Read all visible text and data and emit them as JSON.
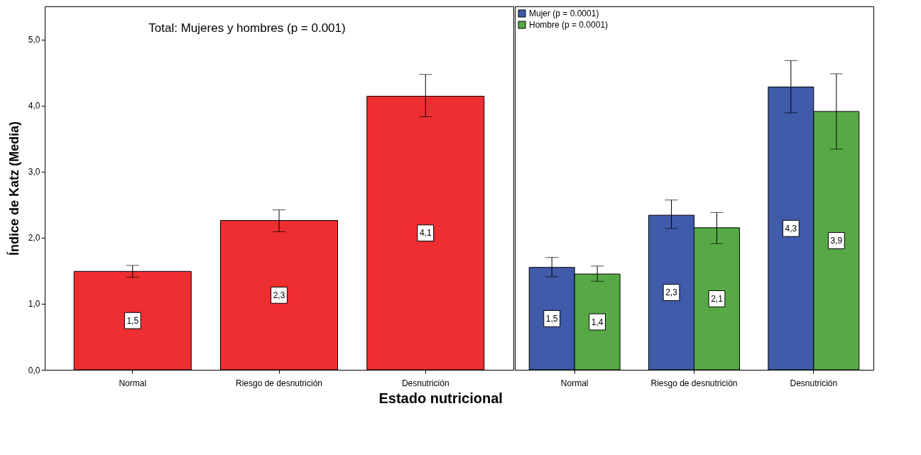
{
  "chart_data": [
    {
      "type": "bar",
      "title": "Total: Mujeres y hombres (p = 0.001)",
      "xlabel": "Estado nutricional",
      "ylabel": "Índice de Katz (Media)",
      "categories": [
        "Normal",
        "Riesgo de desnutrición",
        "Desnutrición"
      ],
      "series": [
        {
          "color": "#ee2e31",
          "values": [
            1.49,
            2.26,
            4.14
          ],
          "errors": [
            [
              1.4,
              1.58
            ],
            [
              2.09,
              2.42
            ],
            [
              3.83,
              4.47
            ]
          ],
          "value_labels": [
            "1,5",
            "2,3",
            "4,1"
          ]
        }
      ],
      "ylim": [
        0,
        5.5
      ],
      "yticks": [
        {
          "value": 0,
          "label": "0,0"
        },
        {
          "value": 1,
          "label": "1,0"
        },
        {
          "value": 2,
          "label": "2,0"
        },
        {
          "value": 3,
          "label": "3,0"
        },
        {
          "value": 4,
          "label": "4,0"
        },
        {
          "value": 5,
          "label": "5,0"
        }
      ],
      "grid": false
    },
    {
      "type": "bar",
      "categories": [
        "Normal",
        "Riesgo de desnutrición",
        "Desnutrición"
      ],
      "series": [
        {
          "name": "Mujer (p = 0.0001)",
          "color": "#3f5ba9",
          "values": [
            1.55,
            2.34,
            4.28
          ],
          "errors": [
            [
              1.41,
              1.7
            ],
            [
              2.14,
              2.57
            ],
            [
              3.89,
              4.68
            ]
          ],
          "value_labels": [
            "1,5",
            "2,3",
            "4,3"
          ]
        },
        {
          "name": "Hombre (p = 0.0001)",
          "color": "#57a946",
          "values": [
            1.45,
            2.15,
            3.91
          ],
          "errors": [
            [
              1.34,
              1.57
            ],
            [
              1.91,
              2.38
            ],
            [
              3.34,
              4.48
            ]
          ],
          "value_labels": [
            "1,4",
            "2,1",
            "3,9"
          ]
        }
      ],
      "ylim": [
        0,
        5.5
      ],
      "tick_labels": "x",
      "legend": "top left",
      "grid": false
    }
  ]
}
